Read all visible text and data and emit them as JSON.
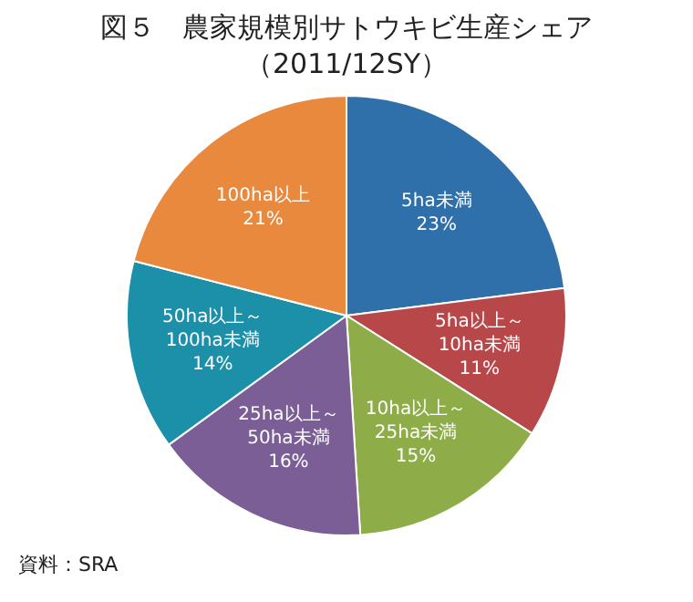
{
  "chart_data": {
    "type": "pie",
    "title": "図５　農家規模別サトウキビ生産シェア",
    "subtitle": "（2011/12SY）",
    "categories": [
      "5ha未満",
      "5ha以上～\n10ha未満",
      "10ha以上～\n25ha未満",
      "25ha以上～\n50ha未満",
      "50ha以上～\n100ha未満",
      "100ha以上"
    ],
    "values": [
      23,
      11,
      15,
      16,
      14,
      21
    ],
    "colors": [
      "#2f70aa",
      "#b8474a",
      "#8eac48",
      "#7a5e95",
      "#1c8fa9",
      "#e8893e"
    ],
    "value_labels": [
      "23%",
      "11%",
      "15%",
      "16%",
      "14%",
      "21%"
    ],
    "annotations": [
      "資料：SRA"
    ],
    "legend": false
  }
}
